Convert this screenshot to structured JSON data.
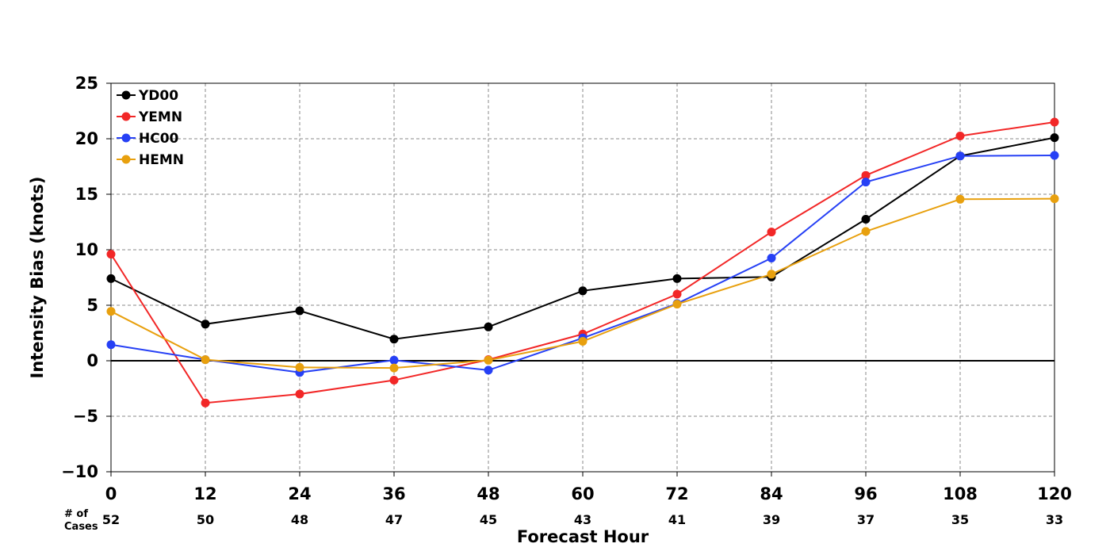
{
  "chart_data": {
    "type": "line",
    "xlabel": "Forecast Hour",
    "ylabel": "Intensity Bias (knots)",
    "x": [
      0,
      12,
      24,
      36,
      48,
      60,
      72,
      84,
      96,
      108,
      120
    ],
    "xlim": [
      0,
      120
    ],
    "ylim": [
      -10,
      25
    ],
    "xticks": [
      "0",
      "12",
      "24",
      "36",
      "48",
      "60",
      "72",
      "84",
      "96",
      "108",
      "120"
    ],
    "yticks": [
      "25",
      "20",
      "15",
      "10",
      "5",
      "0",
      "−5",
      "−10"
    ],
    "yticks_values": [
      25,
      20,
      15,
      10,
      5,
      0,
      -5,
      -10
    ],
    "cases_label_line1": "# of",
    "cases_label_line2": "Cases",
    "cases": [
      "52",
      "50",
      "48",
      "47",
      "45",
      "43",
      "41",
      "39",
      "37",
      "35",
      "33"
    ],
    "grid": true,
    "legend_position": "top-left",
    "series": [
      {
        "name": "YD00",
        "color": "#000000",
        "values": [
          7.4,
          3.3,
          4.5,
          1.95,
          3.05,
          6.3,
          7.4,
          7.55,
          12.75,
          18.45,
          20.1
        ]
      },
      {
        "name": "YEMN",
        "color": "#f22727",
        "values": [
          9.6,
          -3.8,
          -3.0,
          -1.75,
          0.1,
          2.4,
          6.0,
          11.6,
          16.7,
          20.25,
          21.5
        ]
      },
      {
        "name": "HC00",
        "color": "#2640f5",
        "values": [
          1.45,
          0.1,
          -1.05,
          0.05,
          -0.85,
          2.05,
          5.15,
          9.25,
          16.1,
          18.45,
          18.5
        ]
      },
      {
        "name": "HEMN",
        "color": "#e8a00e",
        "values": [
          4.45,
          0.1,
          -0.6,
          -0.65,
          0.05,
          1.75,
          5.1,
          7.8,
          11.65,
          14.55,
          14.6
        ]
      }
    ]
  }
}
